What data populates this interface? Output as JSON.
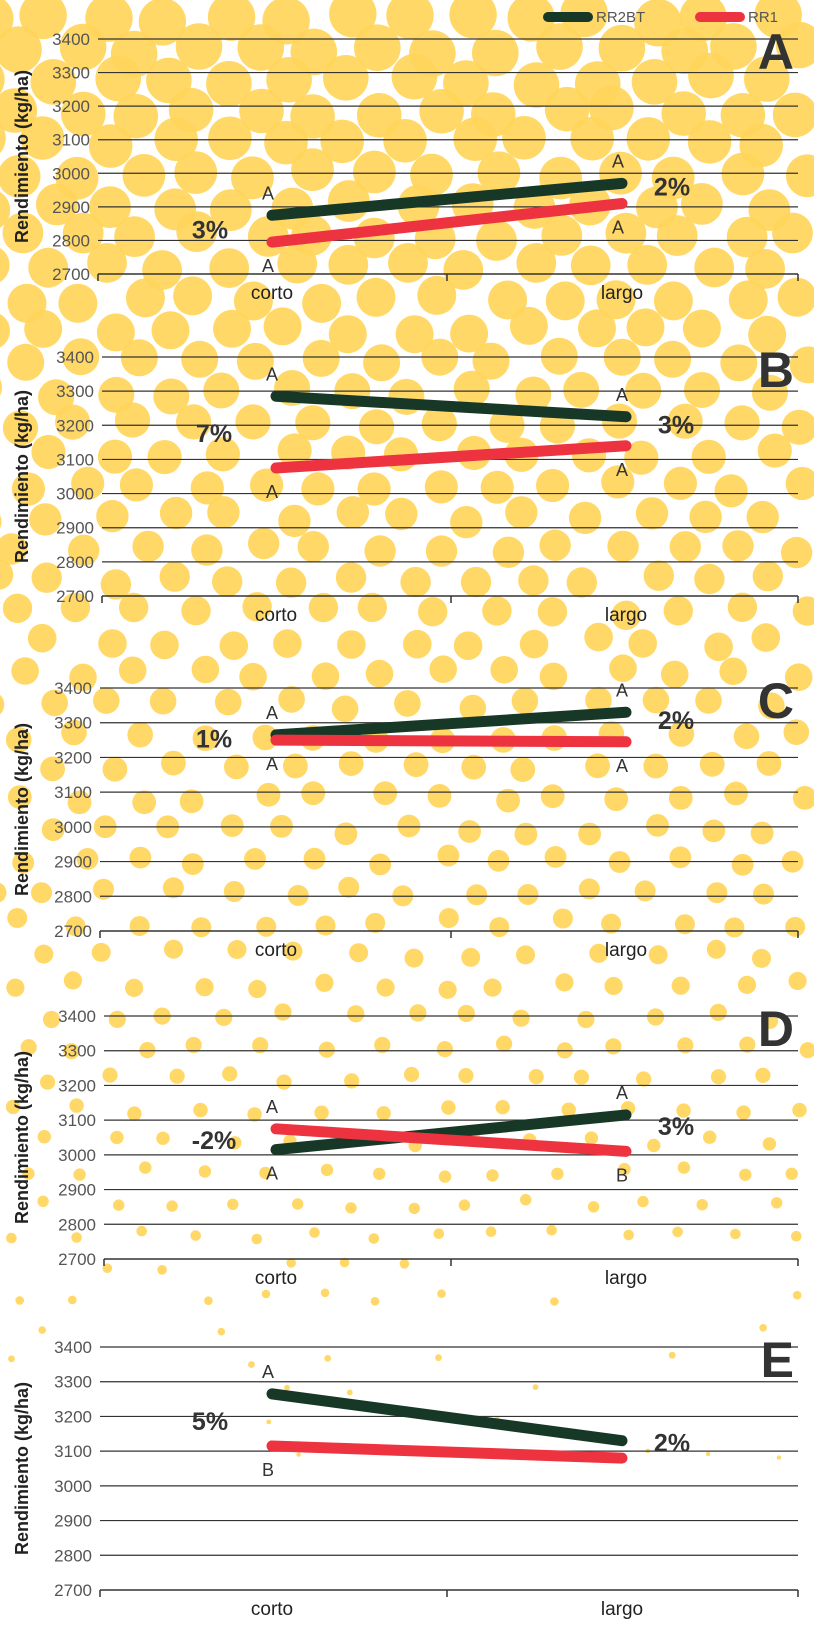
{
  "legend": [
    {
      "name": "RR2BT",
      "color": "#173826"
    },
    {
      "name": "RR1",
      "color": "#ee3340"
    }
  ],
  "decoration": {
    "dot_color": "#ffd55a"
  },
  "chart_data": [
    {
      "type": "line",
      "panel_label": "A",
      "categories": [
        "corto",
        "largo"
      ],
      "ylabel": "Rendimiento (kg/ha)",
      "yticks": [
        "2700",
        "2800",
        "2900",
        "3000",
        "3100",
        "3200",
        "3300",
        "3400"
      ],
      "ylim": [
        2700,
        3400
      ],
      "series": [
        {
          "name": "RR2BT",
          "values": [
            2875,
            2970
          ],
          "letters": [
            "A",
            "A"
          ]
        },
        {
          "name": "RR1",
          "values": [
            2795,
            2910
          ],
          "letters": [
            "A",
            "A"
          ]
        }
      ],
      "differences": [
        "3%",
        "2%"
      ]
    },
    {
      "type": "line",
      "panel_label": "B",
      "categories": [
        "corto",
        "largo"
      ],
      "ylabel": "Rendimiento (kg/ha)",
      "yticks": [
        "2700",
        "2800",
        "2900",
        "3000",
        "3100",
        "3200",
        "3300",
        "3400"
      ],
      "ylim": [
        2700,
        3400
      ],
      "series": [
        {
          "name": "RR2BT",
          "values": [
            3285,
            3225
          ],
          "letters": [
            "A",
            "A"
          ]
        },
        {
          "name": "RR1",
          "values": [
            3075,
            3140
          ],
          "letters": [
            "A",
            "A"
          ]
        }
      ],
      "differences": [
        "7%",
        "3%"
      ]
    },
    {
      "type": "line",
      "panel_label": "C",
      "categories": [
        "corto",
        "largo"
      ],
      "ylabel": "Rendimiento (kg/ha)",
      "yticks": [
        "2700",
        "2800",
        "2900",
        "3000",
        "3100",
        "3200",
        "3300",
        "3400"
      ],
      "ylim": [
        2700,
        3400
      ],
      "series": [
        {
          "name": "RR2BT",
          "values": [
            3265,
            3330
          ],
          "letters": [
            "A",
            "A"
          ]
        },
        {
          "name": "RR1",
          "values": [
            3250,
            3245
          ],
          "letters": [
            "A",
            "A"
          ]
        }
      ],
      "differences": [
        "1%",
        "2%"
      ]
    },
    {
      "type": "line",
      "panel_label": "D",
      "categories": [
        "corto",
        "largo"
      ],
      "ylabel": "Rendimiento (kg/ha)",
      "yticks": [
        "2700",
        "2800",
        "2900",
        "3000",
        "3100",
        "3200",
        "3300",
        "3400"
      ],
      "ylim": [
        2700,
        3400
      ],
      "series": [
        {
          "name": "RR2BT",
          "values": [
            3015,
            3115
          ],
          "letters": [
            "A",
            "A"
          ]
        },
        {
          "name": "RR1",
          "values": [
            3075,
            3010
          ],
          "letters": [
            "A",
            "B"
          ]
        }
      ],
      "differences": [
        "-2%",
        "3%"
      ]
    },
    {
      "type": "line",
      "panel_label": "E",
      "categories": [
        "corto",
        "largo"
      ],
      "ylabel": "Rendimiento (kg/ha)",
      "yticks": [
        "2700",
        "2800",
        "2900",
        "3000",
        "3100",
        "3200",
        "3300",
        "3400"
      ],
      "ylim": [
        2700,
        3400
      ],
      "series": [
        {
          "name": "RR2BT",
          "values": [
            3265,
            3130
          ],
          "letters": [
            "A",
            ""
          ]
        },
        {
          "name": "RR1",
          "values": [
            3115,
            3080
          ],
          "letters": [
            "B",
            ""
          ]
        }
      ],
      "differences": [
        "5%",
        "2%"
      ]
    }
  ]
}
